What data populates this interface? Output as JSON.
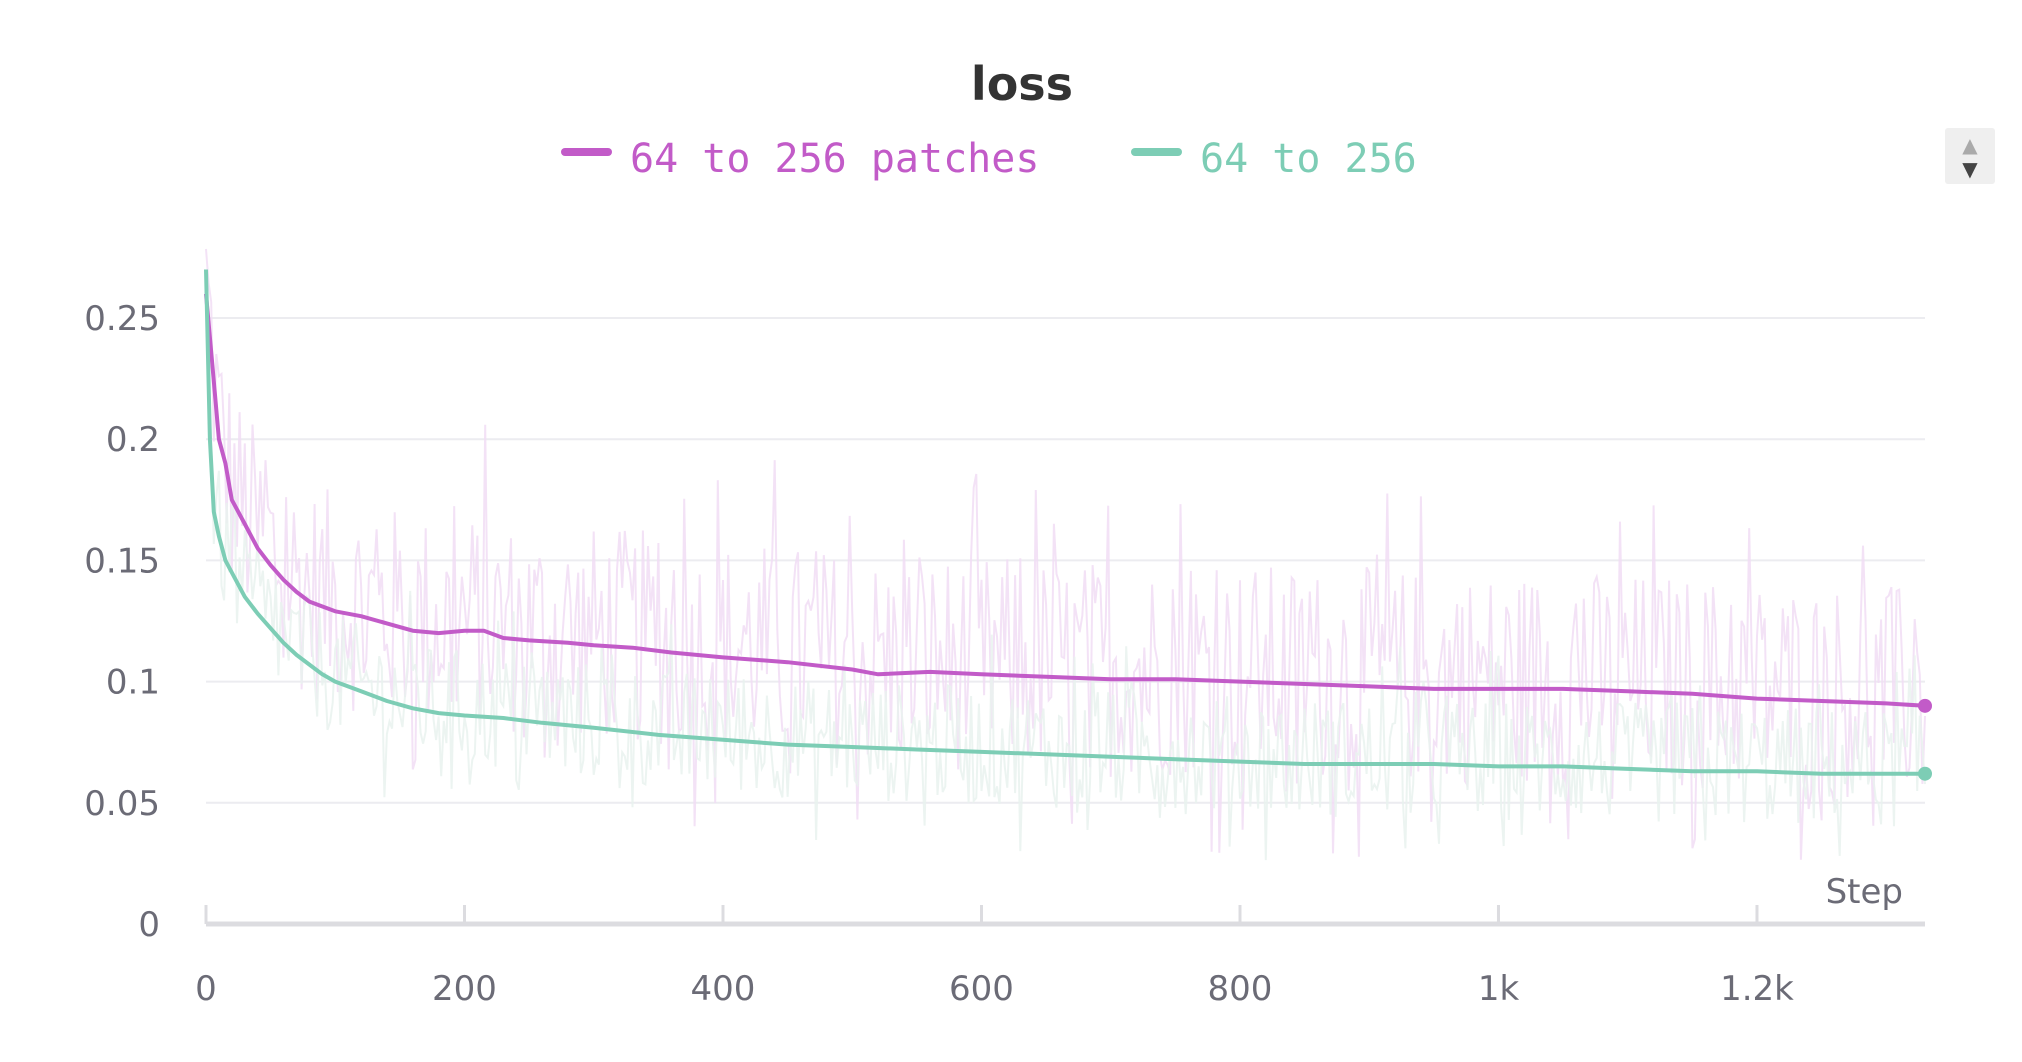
{
  "chart_data": {
    "type": "line",
    "title": "loss",
    "xlabel": "Step",
    "ylabel": "",
    "xlim": [
      0,
      1330
    ],
    "ylim": [
      0,
      0.25
    ],
    "x_ticks": [
      0,
      200,
      400,
      600,
      800,
      1000,
      1200
    ],
    "x_tick_labels": [
      "0",
      "200",
      "400",
      "600",
      "800",
      "1k",
      "1.2k"
    ],
    "y_ticks": [
      0,
      0.05,
      0.1,
      0.15,
      0.2,
      0.25
    ],
    "y_tick_labels": [
      "0",
      "0.05",
      "0.1",
      "0.15",
      "0.2",
      "0.25"
    ],
    "grid": true,
    "legend_position": "top-center",
    "series": [
      {
        "name": "64 to 256 patches",
        "color": "#c25bc8",
        "raw_color": "#f1ddf4",
        "x": [
          0,
          5,
          10,
          15,
          20,
          30,
          40,
          50,
          60,
          70,
          80,
          100,
          120,
          140,
          160,
          180,
          200,
          215,
          230,
          250,
          280,
          300,
          330,
          360,
          400,
          450,
          500,
          520,
          560,
          600,
          650,
          700,
          750,
          800,
          850,
          900,
          950,
          1000,
          1050,
          1100,
          1150,
          1200,
          1250,
          1300,
          1330
        ],
        "values": [
          0.26,
          0.23,
          0.2,
          0.19,
          0.175,
          0.165,
          0.155,
          0.148,
          0.142,
          0.137,
          0.133,
          0.129,
          0.127,
          0.124,
          0.121,
          0.12,
          0.121,
          0.121,
          0.118,
          0.117,
          0.116,
          0.115,
          0.114,
          0.112,
          0.11,
          0.108,
          0.105,
          0.103,
          0.104,
          0.103,
          0.102,
          0.101,
          0.101,
          0.1,
          0.099,
          0.098,
          0.097,
          0.097,
          0.097,
          0.096,
          0.095,
          0.093,
          0.092,
          0.091,
          0.09
        ]
      },
      {
        "name": "64 to 256",
        "color": "#7dcdb5",
        "raw_color": "#e9f2ef",
        "x": [
          0,
          3,
          6,
          10,
          15,
          20,
          30,
          40,
          50,
          60,
          70,
          80,
          90,
          100,
          120,
          140,
          160,
          180,
          200,
          230,
          260,
          300,
          350,
          400,
          450,
          500,
          550,
          600,
          650,
          700,
          750,
          800,
          850,
          900,
          950,
          1000,
          1050,
          1100,
          1150,
          1200,
          1250,
          1300,
          1330
        ],
        "values": [
          0.27,
          0.2,
          0.17,
          0.16,
          0.15,
          0.145,
          0.135,
          0.128,
          0.122,
          0.116,
          0.111,
          0.107,
          0.103,
          0.1,
          0.096,
          0.092,
          0.089,
          0.087,
          0.086,
          0.085,
          0.083,
          0.081,
          0.078,
          0.076,
          0.074,
          0.073,
          0.072,
          0.071,
          0.07,
          0.069,
          0.068,
          0.067,
          0.066,
          0.066,
          0.066,
          0.065,
          0.065,
          0.064,
          0.063,
          0.063,
          0.062,
          0.062,
          0.062
        ]
      }
    ]
  },
  "controls": {
    "scroll_up_glyph": "▲",
    "scroll_down_glyph": "▼"
  }
}
